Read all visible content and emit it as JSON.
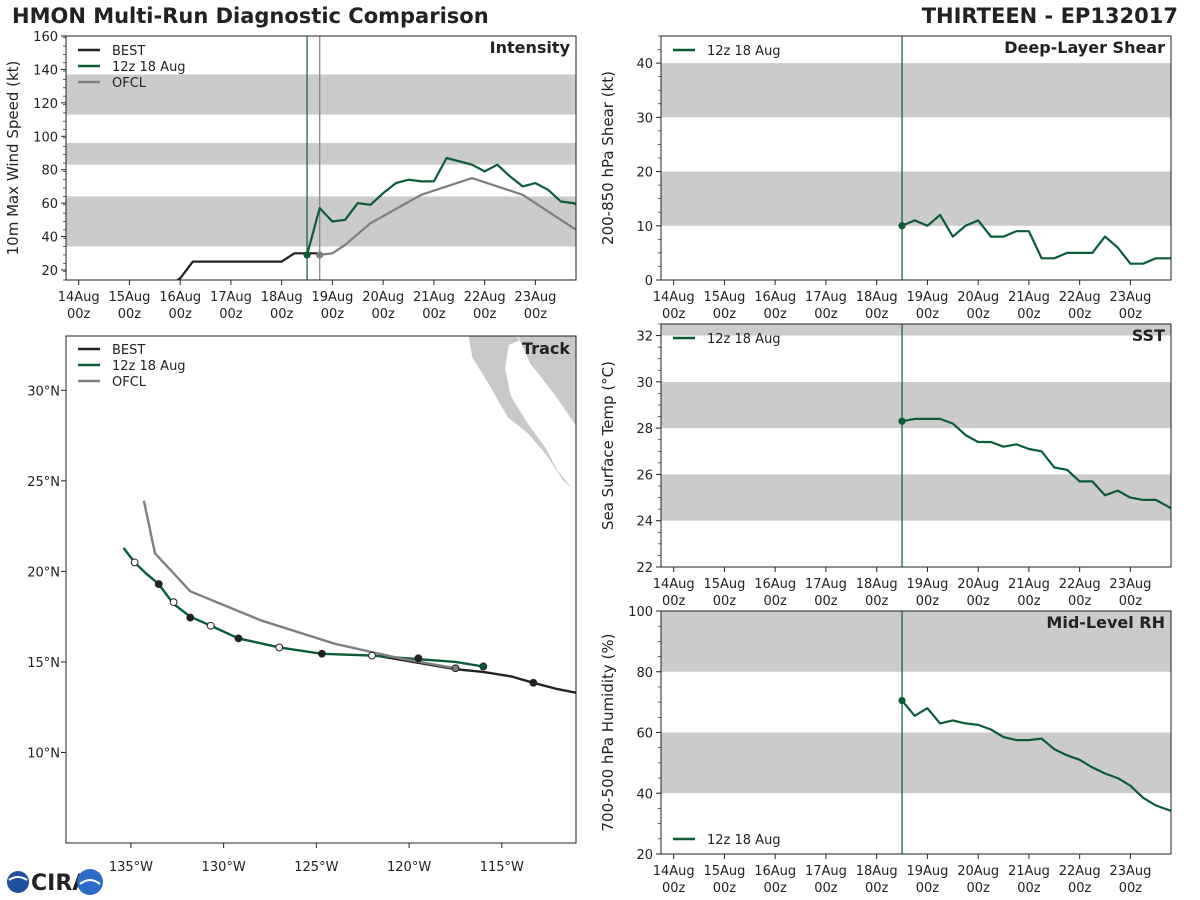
{
  "header": {
    "title": "HMON Multi-Run Diagnostic Comparison",
    "storm": "THIRTEEN - EP132017"
  },
  "logo": {
    "text": "CIRA"
  },
  "colors": {
    "best": "#222222",
    "run": "#0a5c36",
    "ofcl": "#7f7f7f",
    "band": "#cbcbcb",
    "axis": "#222222",
    "land": "#c8c8c8"
  },
  "time_axis": {
    "tick_labels": [
      [
        "14Aug",
        "00z"
      ],
      [
        "15Aug",
        "00z"
      ],
      [
        "16Aug",
        "00z"
      ],
      [
        "17Aug",
        "00z"
      ],
      [
        "18Aug",
        "00z"
      ],
      [
        "19Aug",
        "00z"
      ],
      [
        "20Aug",
        "00z"
      ],
      [
        "21Aug",
        "00z"
      ],
      [
        "22Aug",
        "00z"
      ],
      [
        "23Aug",
        "00z"
      ]
    ],
    "init_day": 4.5,
    "range_days": [
      -0.25,
      9.8
    ]
  },
  "chart_data": [
    {
      "id": "intensity",
      "type": "line",
      "title": "Intensity",
      "ylabel": "10m Max Wind Speed (kt)",
      "xlabel": "",
      "ylim": [
        14,
        160
      ],
      "yticks": [
        20,
        40,
        60,
        80,
        100,
        120,
        140,
        160
      ],
      "bands": [
        [
          34,
          64
        ],
        [
          83,
          96
        ],
        [
          113,
          137
        ]
      ],
      "vlines": [
        {
          "x": 4.5,
          "color": "run"
        },
        {
          "x": 4.75,
          "color": "ofcl"
        }
      ],
      "legend": [
        "BEST",
        "12z 18 Aug",
        "OFCL"
      ],
      "series": [
        {
          "name": "BEST",
          "color": "best",
          "x": [
            1.75,
            2.0,
            2.25,
            2.5,
            2.75,
            3.0,
            3.25,
            3.5,
            3.75,
            4.0,
            4.25,
            4.5,
            4.75
          ],
          "y": [
            10,
            15,
            25,
            25,
            25,
            25,
            25,
            25,
            25,
            25,
            30,
            30,
            30
          ]
        },
        {
          "name": "12z 18 Aug",
          "color": "run",
          "marker_first": true,
          "x": [
            4.5,
            4.75,
            5.0,
            5.25,
            5.5,
            5.75,
            6.0,
            6.25,
            6.5,
            6.75,
            7.0,
            7.25,
            7.5,
            7.75,
            8.0,
            8.25,
            8.5,
            8.75,
            9.0,
            9.25,
            9.5,
            9.75,
            10.0
          ],
          "y": [
            29,
            57,
            49,
            50,
            60,
            59,
            66,
            72,
            74,
            73,
            73,
            87,
            85,
            83,
            79,
            83,
            76,
            70,
            72,
            68,
            61,
            60,
            56
          ]
        },
        {
          "name": "OFCL",
          "color": "ofcl",
          "marker_first": true,
          "x": [
            4.75,
            5.0,
            5.25,
            5.75,
            6.75,
            7.75,
            8.75,
            9.75,
            10.0
          ],
          "y": [
            29,
            30,
            35,
            48,
            65,
            75,
            65,
            45,
            42
          ]
        }
      ]
    },
    {
      "id": "shear",
      "type": "line",
      "title": "Deep-Layer Shear",
      "ylabel": "200-850 hPa Shear (kt)",
      "xlabel": "",
      "ylim": [
        0,
        45
      ],
      "yticks": [
        0,
        10,
        20,
        30,
        40
      ],
      "bands": [
        [
          10,
          20
        ],
        [
          30,
          40
        ]
      ],
      "vlines": [
        {
          "x": 4.5,
          "color": "run"
        }
      ],
      "legend": [
        "12z 18 Aug"
      ],
      "series": [
        {
          "name": "12z 18 Aug",
          "color": "run",
          "marker_first": true,
          "x": [
            4.5,
            4.75,
            5.0,
            5.25,
            5.5,
            5.75,
            6.0,
            6.25,
            6.5,
            6.75,
            7.0,
            7.25,
            7.5,
            7.75,
            8.0,
            8.25,
            8.5,
            8.75,
            9.0,
            9.25,
            9.5,
            9.75,
            10.0
          ],
          "y": [
            10,
            11,
            10,
            12,
            8,
            10,
            11,
            8,
            8,
            9,
            9,
            4,
            4,
            5,
            5,
            5,
            8,
            6,
            3,
            3,
            4,
            4,
            4
          ]
        }
      ]
    },
    {
      "id": "sst",
      "type": "line",
      "title": "SST",
      "ylabel": "Sea Surface Temp (°C)",
      "xlabel": "",
      "ylim": [
        22,
        32.5
      ],
      "yticks": [
        22,
        24,
        26,
        28,
        30,
        32
      ],
      "bands": [
        [
          24,
          26
        ],
        [
          28,
          30
        ],
        [
          32,
          34
        ]
      ],
      "vlines": [
        {
          "x": 4.5,
          "color": "run"
        }
      ],
      "legend": [
        "12z 18 Aug"
      ],
      "series": [
        {
          "name": "12z 18 Aug",
          "color": "run",
          "marker_first": true,
          "x": [
            4.5,
            4.75,
            5.0,
            5.25,
            5.5,
            5.75,
            6.0,
            6.25,
            6.5,
            6.75,
            7.0,
            7.25,
            7.5,
            7.75,
            8.0,
            8.25,
            8.5,
            8.75,
            9.0,
            9.25,
            9.5,
            9.75,
            10.0
          ],
          "y": [
            28.3,
            28.4,
            28.4,
            28.4,
            28.2,
            27.7,
            27.4,
            27.4,
            27.2,
            27.3,
            27.1,
            27.0,
            26.3,
            26.2,
            25.7,
            25.7,
            25.1,
            25.3,
            25.0,
            24.9,
            24.9,
            24.6,
            24.3
          ]
        }
      ]
    },
    {
      "id": "rh",
      "type": "line",
      "title": "Mid-Level RH",
      "ylabel": "700-500 hPa Humidity (%)",
      "xlabel": "",
      "ylim": [
        20,
        100
      ],
      "yticks": [
        20,
        40,
        60,
        80,
        100
      ],
      "bands": [
        [
          40,
          60
        ],
        [
          80,
          100
        ]
      ],
      "vlines": [
        {
          "x": 4.5,
          "color": "run"
        }
      ],
      "legend": [
        "12z 18 Aug"
      ],
      "legend_loc": "lower-left",
      "series": [
        {
          "name": "12z 18 Aug",
          "color": "run",
          "marker_first": true,
          "x": [
            4.5,
            4.75,
            5.0,
            5.25,
            5.5,
            5.75,
            6.0,
            6.25,
            6.5,
            6.75,
            7.0,
            7.25,
            7.5,
            7.75,
            8.0,
            8.25,
            8.5,
            8.75,
            9.0,
            9.25,
            9.5,
            9.75,
            10.0
          ],
          "y": [
            70.5,
            65.5,
            68,
            63,
            64,
            63,
            62.5,
            61,
            58.5,
            57.5,
            57.5,
            58,
            54.5,
            52.5,
            51,
            48.5,
            46.5,
            45,
            42.5,
            38.5,
            36,
            34.5,
            33
          ]
        }
      ]
    },
    {
      "id": "track",
      "type": "line",
      "title": "Track",
      "xlabel": "",
      "ylabel": "",
      "xlim": [
        -138.5,
        -111
      ],
      "ylim": [
        5,
        33
      ],
      "xticks": [
        -135,
        -130,
        -125,
        -120,
        -115
      ],
      "xtick_labels": [
        "135°W",
        "130°W",
        "125°W",
        "120°W",
        "115°W"
      ],
      "yticks": [
        10,
        15,
        20,
        25,
        30
      ],
      "ytick_labels": [
        "10°N",
        "15°N",
        "20°N",
        "25°N",
        "30°N"
      ],
      "legend": [
        "BEST",
        "12z 18 Aug",
        "OFCL"
      ],
      "series": [
        {
          "name": "BEST",
          "color": "best",
          "lon": [
            -111,
            -112,
            -113.3,
            -114.5,
            -116.0,
            -117.5,
            -119.5,
            -121.5
          ],
          "lat": [
            13.3,
            13.5,
            13.85,
            14.2,
            14.45,
            14.6,
            14.95,
            15.3
          ],
          "markers": [
            {
              "lon": -113.3,
              "lat": 13.85,
              "fill": "best"
            },
            {
              "lon": -119.5,
              "lat": 15.2,
              "fill": "best"
            }
          ]
        },
        {
          "name": "12z 18 Aug",
          "color": "run",
          "lon": [
            -116.0,
            -117.5,
            -119.5,
            -122.0,
            -124.7,
            -127.0,
            -129.2,
            -130.7,
            -131.8,
            -132.7,
            -133.5,
            -134.2,
            -134.8,
            -135.4
          ],
          "lat": [
            14.75,
            15.0,
            15.15,
            15.35,
            15.45,
            15.8,
            16.3,
            17.0,
            17.5,
            18.2,
            19.3,
            19.9,
            20.5,
            21.3
          ],
          "markers": [
            {
              "lon": -116.0,
              "lat": 14.75,
              "fill": "run"
            },
            {
              "lon": -122.0,
              "lat": 15.35,
              "fill": "white"
            },
            {
              "lon": -124.7,
              "lat": 15.45,
              "fill": "best"
            },
            {
              "lon": -127.0,
              "lat": 15.8,
              "fill": "white"
            },
            {
              "lon": -129.2,
              "lat": 16.3,
              "fill": "best"
            },
            {
              "lon": -130.7,
              "lat": 17.0,
              "fill": "white"
            },
            {
              "lon": -131.8,
              "lat": 17.45,
              "fill": "best"
            },
            {
              "lon": -132.7,
              "lat": 18.3,
              "fill": "white"
            },
            {
              "lon": -133.5,
              "lat": 19.3,
              "fill": "best"
            },
            {
              "lon": -134.8,
              "lat": 20.5,
              "fill": "white"
            }
          ]
        },
        {
          "name": "OFCL",
          "color": "ofcl",
          "lon": [
            -117.5,
            -120.5,
            -124.0,
            -128.0,
            -131.8,
            -133.7,
            -134.3
          ],
          "lat": [
            14.65,
            15.2,
            16.0,
            17.3,
            18.9,
            21.0,
            23.9
          ],
          "markers": [
            {
              "lon": -117.5,
              "lat": 14.65,
              "fill": "ofcl"
            }
          ]
        }
      ]
    }
  ]
}
